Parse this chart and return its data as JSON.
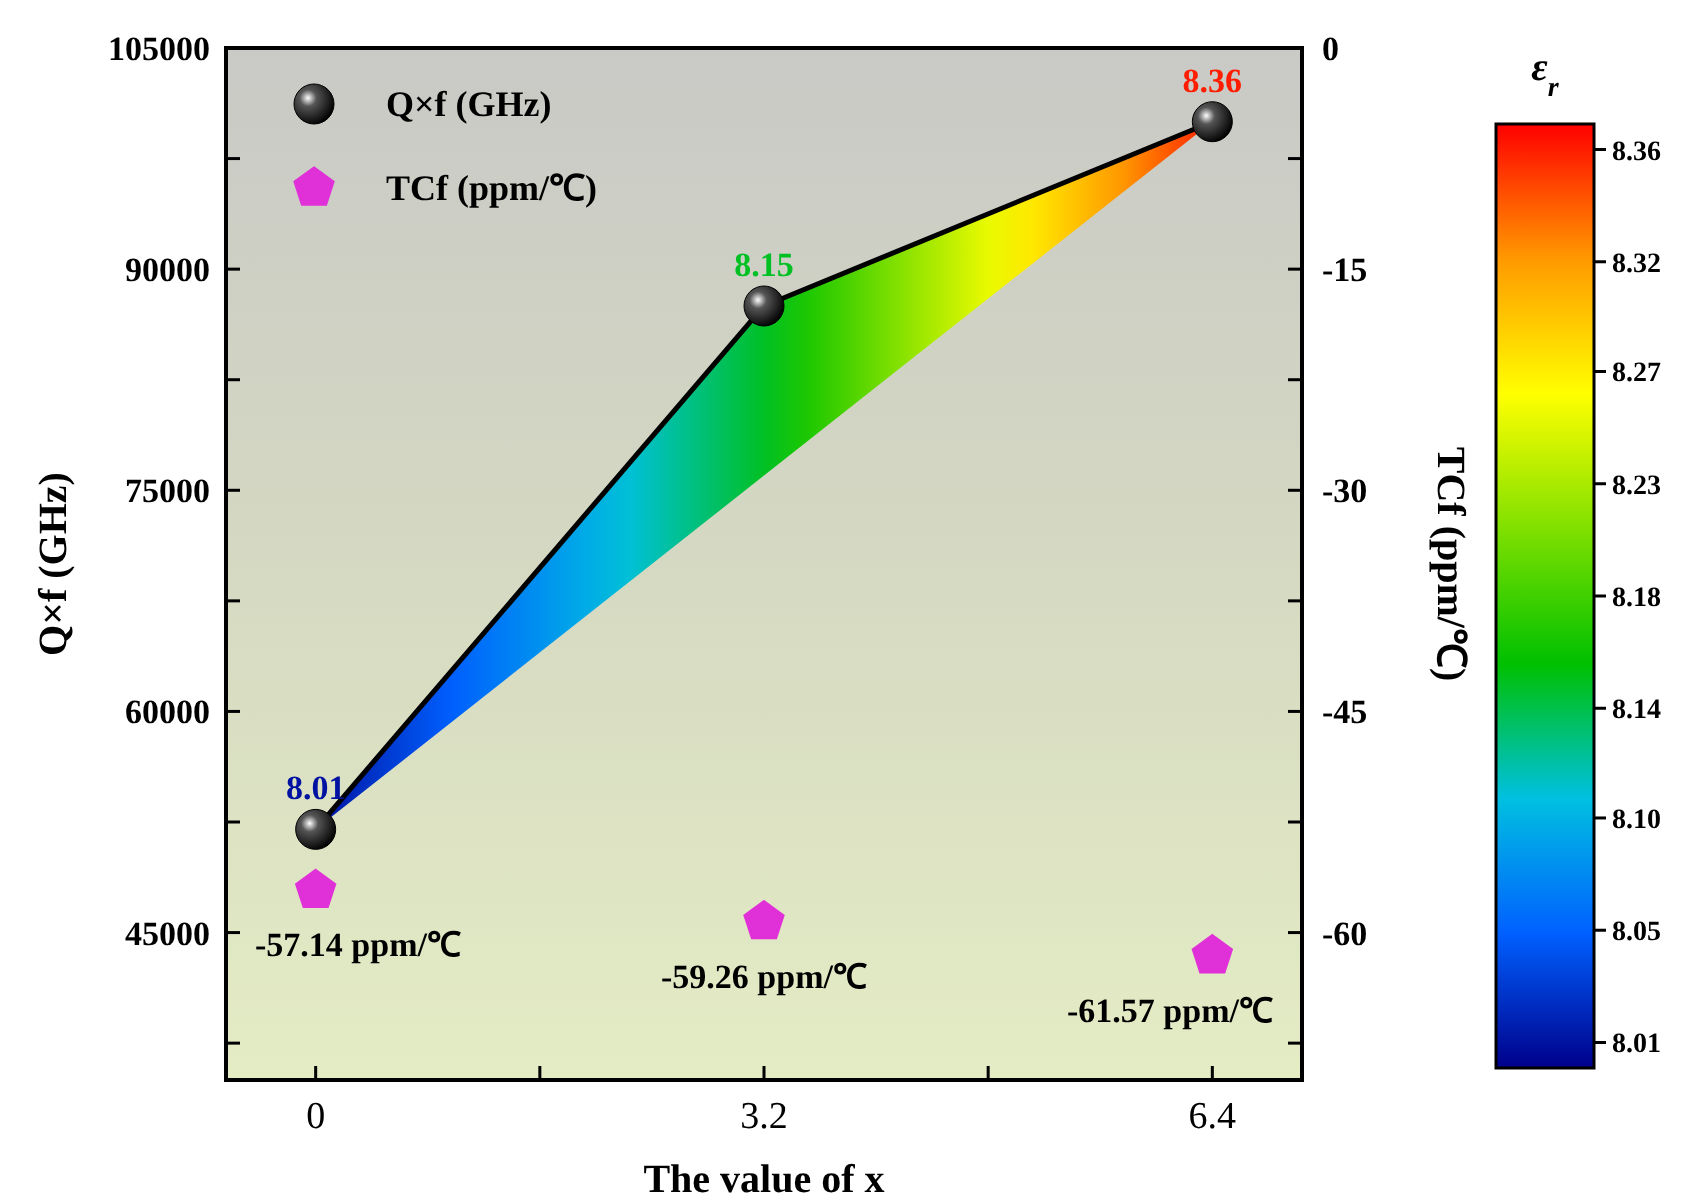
{
  "chart_data": {
    "type": "line",
    "xlabel": "The value of x",
    "ylabel": "Q×f (GHz)",
    "y2label": "TCf (ppm/℃)",
    "clabel": "ε$_{r}$",
    "x": [
      0,
      3.2,
      6.4
    ],
    "xlim": [
      -0.64,
      7.04
    ],
    "xticks": [
      0,
      {
        "value": 1.6,
        "label": null
      },
      3.2,
      {
        "value": 4.8,
        "label": null
      },
      6.4
    ],
    "ylim": [
      35000,
      105000
    ],
    "yticks": [
      {
        "value": 37500,
        "label": null
      },
      45000,
      {
        "value": 52500,
        "label": null
      },
      60000,
      {
        "value": 67500,
        "label": null
      },
      75000,
      {
        "value": 82500,
        "label": null
      },
      90000,
      {
        "value": 97500,
        "label": null
      },
      105000
    ],
    "y2lim": [
      -70,
      0
    ],
    "y2ticks": [
      0,
      {
        "value": -7.5,
        "label": null
      },
      -15,
      {
        "value": -22.5,
        "label": null
      },
      -30,
      {
        "value": -37.5,
        "label": null
      },
      -45,
      {
        "value": -52.5,
        "label": null
      },
      -60,
      {
        "value": -67.5,
        "label": null
      }
    ],
    "clim": [
      8.0,
      8.37
    ],
    "cticks": [
      {
        "value": 8.01,
        "label": "8.01"
      },
      {
        "value": 8.054,
        "label": "8.05"
      },
      {
        "value": 8.098,
        "label": "8.10"
      },
      {
        "value": 8.141,
        "label": "8.14"
      },
      {
        "value": 8.185,
        "label": "8.18"
      },
      {
        "value": 8.229,
        "label": "8.23"
      },
      {
        "value": 8.273,
        "label": "8.27"
      },
      {
        "value": 8.316,
        "label": "8.32"
      },
      {
        "value": 8.36,
        "label": "8.36"
      }
    ],
    "grid": false,
    "legend": "top left",
    "annotations": [
      {
        "text": "8.01",
        "x": 0,
        "y": 52000
      },
      {
        "text": "8.15",
        "x": 3.2,
        "y": 87500
      },
      {
        "text": "8.36",
        "x": 6.4,
        "y": 100000
      }
    ],
    "series": [
      {
        "name": "Q×f (GHz)",
        "color": "#000000",
        "marker": "circle",
        "values": [
          52000,
          87500,
          100000
        ],
        "lower": [
          52000,
          76000,
          100000
        ],
        "upper": [
          52000,
          87500,
          100000
        ]
      },
      {
        "name": "TCf (ppm/℃)",
        "type": "scatter",
        "axis": "y2",
        "color": "#e030d8",
        "values": [
          -57.14,
          -59.26,
          -61.57
        ],
        "value_labels": [
          "-57.14 ppm/℃",
          "-59.26 ppm/℃",
          "-61.57 ppm/℃"
        ]
      }
    ]
  }
}
